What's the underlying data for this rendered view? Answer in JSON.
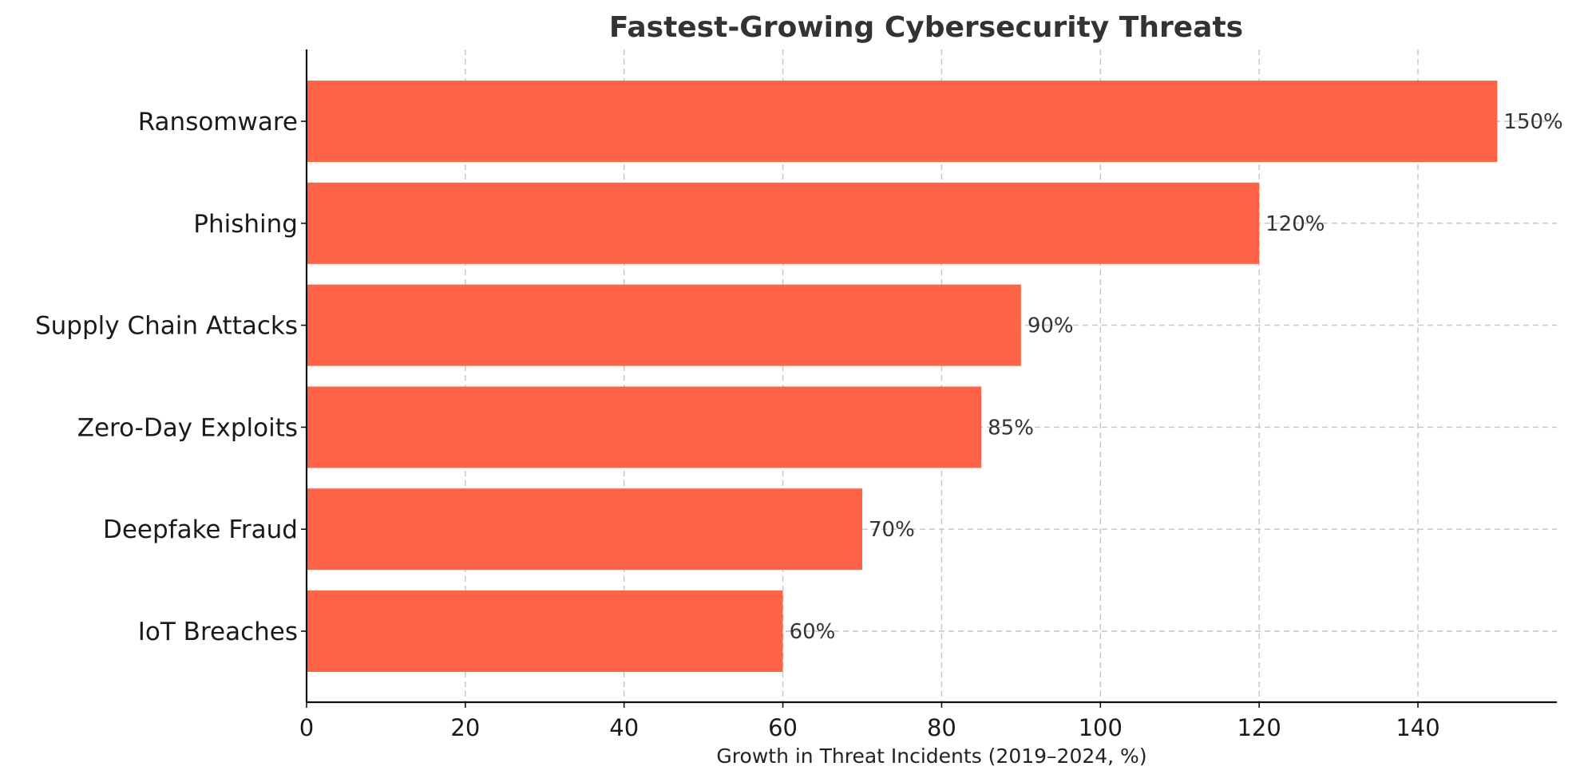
{
  "chart_data": {
    "type": "bar",
    "orientation": "horizontal",
    "title": "Fastest-Growing Cybersecurity Threats",
    "xlabel": "Growth in Threat Incidents (2019–2024, %)",
    "ylabel": "",
    "categories": [
      "Ransomware",
      "Phishing",
      "Supply Chain Attacks",
      "Zero-Day Exploits",
      "Deepfake Fraud",
      "IoT Breaches"
    ],
    "values": [
      150,
      120,
      90,
      85,
      70,
      60
    ],
    "data_labels": [
      "150%",
      "120%",
      "90%",
      "85%",
      "70%",
      "60%"
    ],
    "xticks": [
      0,
      20,
      40,
      60,
      80,
      100,
      120,
      140
    ],
    "xtick_labels": [
      "0",
      "20",
      "40",
      "60",
      "80",
      "100",
      "120",
      "140"
    ],
    "xlim": [
      0,
      157.5
    ],
    "grid": "dashed, both axes",
    "legend": "none",
    "bar_color": "#FF6347"
  }
}
